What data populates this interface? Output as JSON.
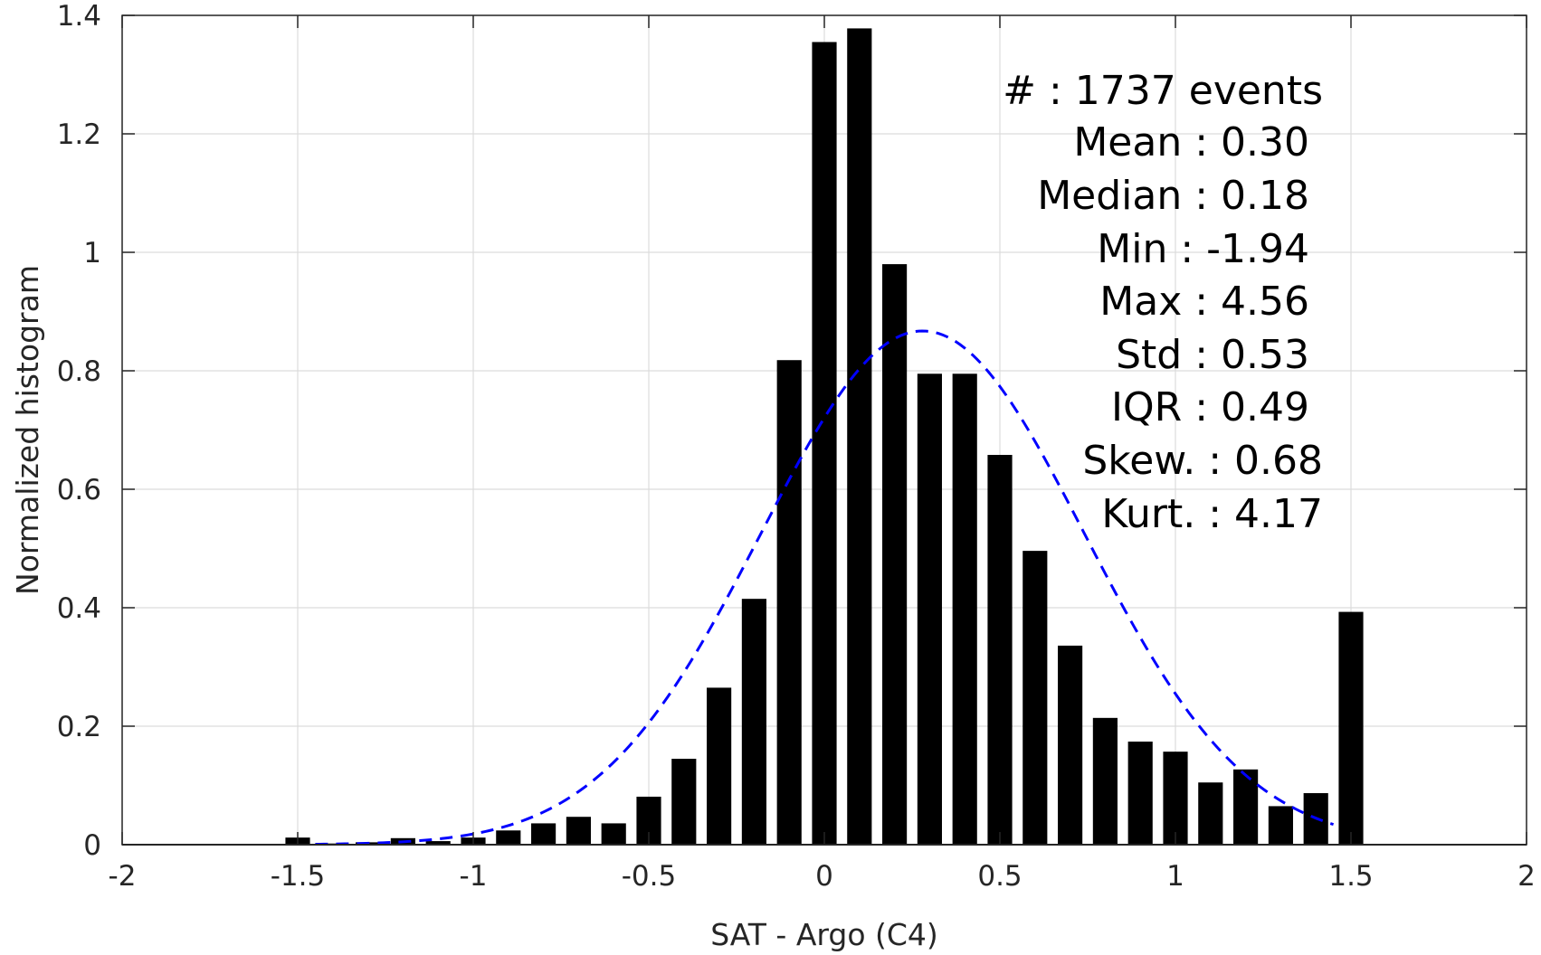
{
  "chart_data": {
    "type": "bar",
    "xlabel": "SAT - Argo (C4)",
    "ylabel": "Normalized histogram",
    "xlim": [
      -2,
      2
    ],
    "ylim": [
      0,
      1.4
    ],
    "xticks": [
      -2,
      -1.5,
      -1,
      -0.5,
      0,
      0.5,
      1,
      1.5,
      2
    ],
    "xtick_labels": [
      "-2",
      "-1.5",
      "-1",
      "-0.5",
      "0",
      "0.5",
      "1",
      "1.5",
      "2"
    ],
    "yticks": [
      0,
      0.2,
      0.4,
      0.6,
      0.8,
      1,
      1.2,
      1.4
    ],
    "ytick_labels": [
      "0",
      "0.2",
      "0.4",
      "0.6",
      "0.8",
      "1",
      "1.2",
      "1.4"
    ],
    "grid": true,
    "bar_width": 0.07,
    "bar_color": "#000000",
    "bins": [
      -1.5,
      -1.4,
      -1.3,
      -1.2,
      -1.1,
      -1.0,
      -0.9,
      -0.8,
      -0.7,
      -0.6,
      -0.5,
      -0.4,
      -0.3,
      -0.2,
      -0.1,
      0.0,
      0.1,
      0.2,
      0.3,
      0.4,
      0.5,
      0.6,
      0.7,
      0.8,
      0.9,
      1.0,
      1.1,
      1.2,
      1.3,
      1.4,
      1.5
    ],
    "values": [
      0.012,
      0.002,
      0.004,
      0.011,
      0.006,
      0.012,
      0.024,
      0.036,
      0.047,
      0.036,
      0.081,
      0.145,
      0.265,
      0.415,
      0.818,
      1.355,
      1.378,
      0.98,
      0.795,
      0.795,
      0.658,
      0.496,
      0.336,
      0.214,
      0.174,
      0.157,
      0.105,
      0.127,
      0.065,
      0.087,
      0.393
    ],
    "fit_curve": {
      "kind": "normal",
      "mean": 0.28,
      "std": 0.46,
      "x_range": [
        -1.45,
        1.45
      ],
      "color": "#0000ff",
      "style": "dashed"
    },
    "annotations": [
      "#  : 1737 events",
      "Mean : 0.30",
      "Median : 0.18",
      "Min : -1.94",
      "Max : 4.56",
      "Std : 0.53",
      "IQR : 0.49",
      "Skew. : 0.68",
      "Kurt. : 4.17"
    ]
  }
}
